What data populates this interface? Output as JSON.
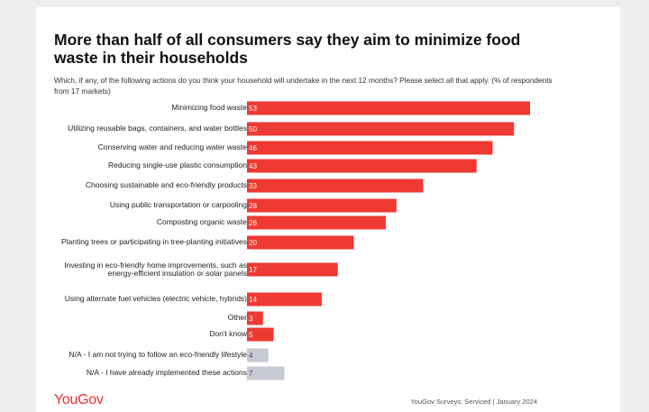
{
  "chart_data": {
    "type": "bar",
    "orientation": "horizontal",
    "title": "More than half of all consumers say they aim to minimize food waste in their households",
    "subtitle": "Which, if any, of the following actions do you think your household will undertake in the next 12 months? Please select all that apply. (% of respondents from 17 markets)",
    "categories": [
      "Minimizing food waste",
      "Utilizing reusable bags, containers, and water bottles",
      "Conserving water and reducing water waste",
      "Reducing single-use plastic consumption",
      "Choosing sustainable and eco-friendly products",
      "Using public transportation or carpooling",
      "Composting organic waste",
      "Planting trees or participating in tree-planting initiatives",
      "Investing in eco-friendly home improvements, such as energy-efficient insulation or solar panels",
      "Using alternate fuel vehicles (electric vehicle, hybrids)",
      "Other",
      "Don't know",
      "N/A - I am not trying to follow an eco-friendly lifestyle",
      "N/A - I have already implemented these actions"
    ],
    "values": [
      53,
      50,
      46,
      43,
      33,
      28,
      26,
      20,
      17,
      14,
      3,
      5,
      4,
      7
    ],
    "xlim": [
      0,
      53
    ],
    "xlabel": "",
    "ylabel": "",
    "grid": false,
    "legend": "none"
  },
  "colors": {
    "bar": "#ee3a33",
    "bar_na": "#c7cad3",
    "value_label": "#ffffff",
    "value_label_na": "#444444"
  },
  "footer": {
    "logo": "YouGov",
    "source": "YouGov Surveys: Serviced | January 2024"
  }
}
